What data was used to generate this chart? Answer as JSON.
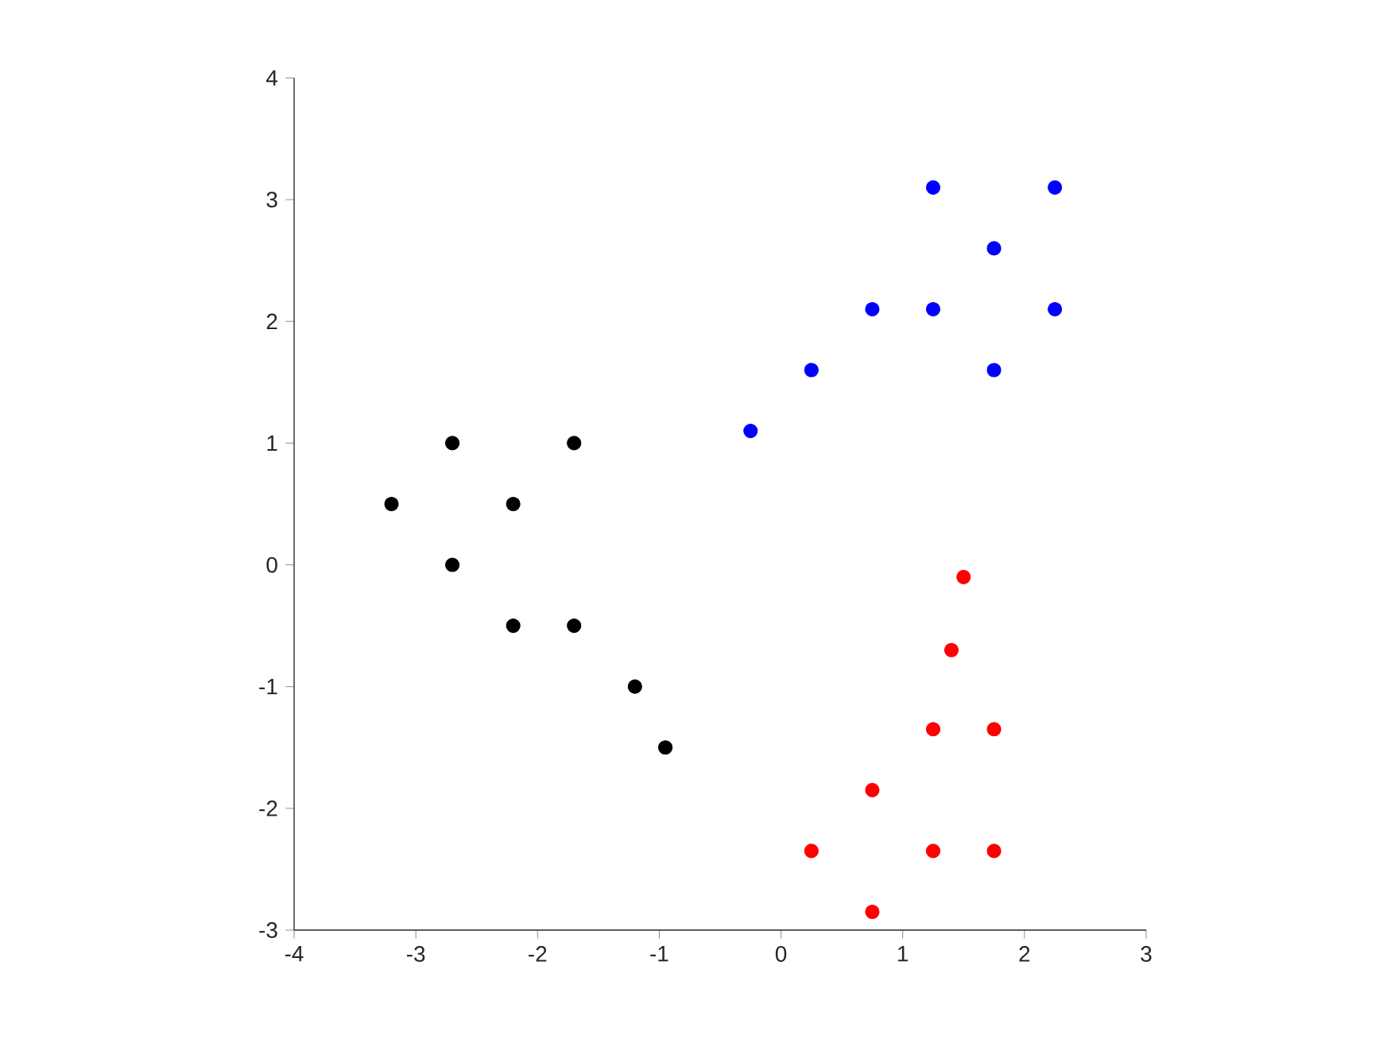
{
  "chart_data": {
    "type": "scatter",
    "xlim": [
      -4,
      3
    ],
    "ylim": [
      -3,
      4
    ],
    "xticks": [
      -4,
      -3,
      -2,
      -1,
      0,
      1,
      2,
      3
    ],
    "yticks": [
      -3,
      -2,
      -1,
      0,
      1,
      2,
      3,
      4
    ],
    "series": [
      {
        "color": "#000000",
        "x": [
          -3.2,
          -2.7,
          -1.7,
          -2.2,
          -2.7,
          -2.2,
          -1.7,
          -1.2,
          -0.95
        ],
        "values": [
          0.5,
          1,
          1,
          0.5,
          0,
          -0.5,
          -0.5,
          -1,
          -1.5
        ]
      },
      {
        "color": "#0000ff",
        "x": [
          -0.25,
          0.25,
          0.75,
          1.25,
          1.25,
          1.75,
          1.75,
          2.25,
          2.25
        ],
        "values": [
          1.1,
          1.6,
          2.1,
          2.1,
          3.1,
          2.6,
          1.6,
          3.1,
          2.1
        ]
      },
      {
        "color": "#ff0000",
        "x": [
          1.5,
          1.4,
          1.25,
          1.75,
          0.75,
          0.25,
          1.25,
          1.75,
          0.75
        ],
        "values": [
          -0.1,
          -0.7,
          -1.35,
          -1.35,
          -1.85,
          -2.35,
          -2.35,
          -2.35,
          -2.85
        ]
      }
    ]
  }
}
